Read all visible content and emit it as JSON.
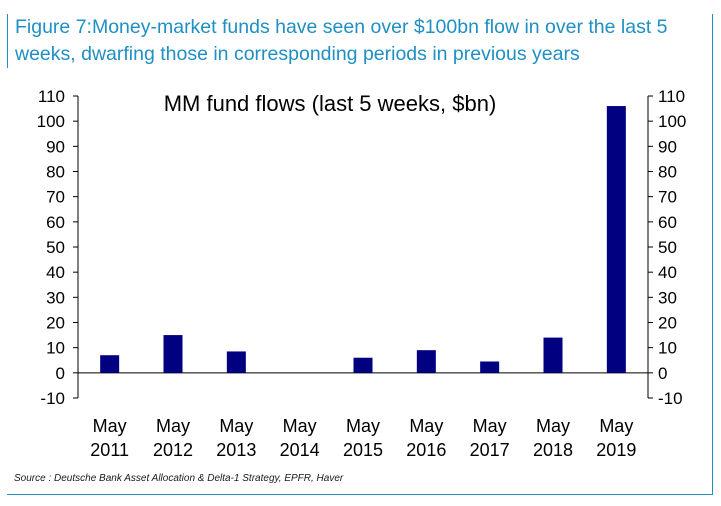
{
  "figure_title": "Figure 7:Money-market funds have seen over $100bn flow in over the last 5 weeks, dwarfing those in corresponding periods in previous years",
  "source": "Source : Deutsche Bank Asset Allocation & Delta-1 Strategy, EPFR, Haver",
  "colors": {
    "bar": "#000080",
    "title": "#1f8fc4",
    "frame": "#1f8fc4"
  },
  "chart_data": {
    "type": "bar",
    "title": "MM fund flows (last 5 weeks, $bn)",
    "categories": [
      [
        "May",
        "2011"
      ],
      [
        "May",
        "2012"
      ],
      [
        "May",
        "2013"
      ],
      [
        "May",
        "2014"
      ],
      [
        "May",
        "2015"
      ],
      [
        "May",
        "2016"
      ],
      [
        "May",
        "2017"
      ],
      [
        "May",
        "2018"
      ],
      [
        "May",
        "2019"
      ]
    ],
    "values": [
      7,
      15,
      8.5,
      0,
      6,
      9,
      4.5,
      14,
      106
    ],
    "ylim": [
      -10,
      110
    ],
    "yticks": [
      -10,
      0,
      10,
      20,
      30,
      40,
      50,
      60,
      70,
      80,
      90,
      100,
      110
    ],
    "right_axis": true,
    "grid": false,
    "xlabel": "",
    "ylabel": ""
  }
}
